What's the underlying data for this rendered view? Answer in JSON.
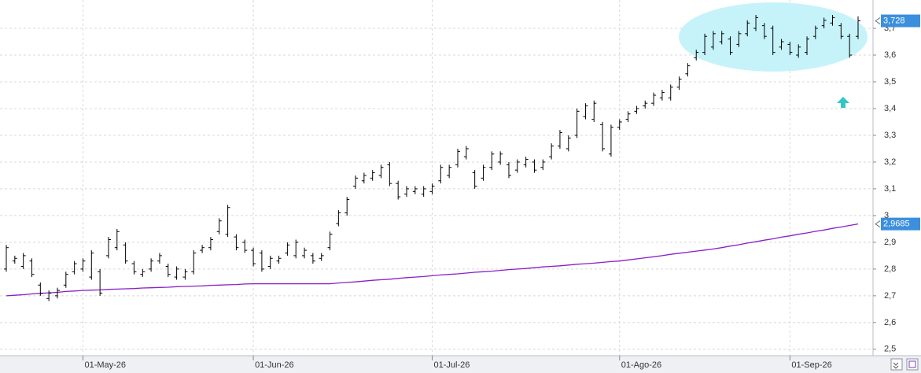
{
  "chart_data": {
    "type": "ohlc",
    "categories": [
      null,
      null,
      null,
      null,
      null,
      null,
      null,
      null,
      null,
      "01-May-26",
      null,
      null,
      null,
      null,
      null,
      null,
      null,
      null,
      null,
      null,
      null,
      null,
      null,
      null,
      null,
      null,
      null,
      null,
      null,
      "01-Jun-26",
      null,
      null,
      null,
      null,
      null,
      null,
      null,
      null,
      null,
      null,
      null,
      null,
      null,
      null,
      null,
      null,
      null,
      null,
      null,
      null,
      "01-Jul-26",
      null,
      null,
      null,
      null,
      null,
      null,
      null,
      null,
      null,
      null,
      null,
      null,
      null,
      null,
      null,
      null,
      null,
      null,
      null,
      null,
      null,
      "01-Ago-26",
      null,
      null,
      null,
      null,
      null,
      null,
      null,
      null,
      null,
      null,
      null,
      null,
      null,
      null,
      null,
      null,
      null,
      null,
      null,
      "01-Sep-26",
      null,
      null,
      null,
      null,
      null,
      null,
      null,
      null
    ],
    "ohlc": {
      "color": "#000000",
      "last_label": "3,728",
      "open": [
        2.8,
        2.83,
        2.81,
        2.83,
        2.74,
        2.69,
        2.7,
        2.74,
        2.79,
        2.8,
        2.77,
        2.79,
        2.85,
        2.88,
        2.89,
        2.82,
        2.78,
        2.8,
        2.83,
        2.81,
        2.77,
        2.77,
        2.79,
        2.87,
        2.88,
        2.94,
        2.93,
        2.92,
        2.9,
        2.87,
        2.86,
        2.81,
        2.83,
        2.86,
        2.85,
        2.85,
        2.85,
        2.84,
        2.88,
        2.97,
        3.01,
        3.11,
        3.13,
        3.14,
        3.15,
        3.19,
        3.12,
        3.08,
        3.09,
        3.08,
        3.09,
        3.13,
        3.15,
        3.19,
        3.22,
        3.16,
        3.14,
        3.18,
        3.2,
        3.19,
        3.17,
        3.19,
        3.2,
        3.18,
        3.22,
        3.26,
        3.25,
        3.3,
        3.37,
        3.36,
        3.34,
        3.23,
        3.33,
        3.36,
        3.39,
        3.41,
        3.42,
        3.44,
        3.44,
        3.48,
        3.53,
        3.59,
        3.61,
        3.63,
        3.65,
        3.66,
        3.64,
        3.68,
        3.7,
        3.71,
        3.7,
        3.63,
        3.64,
        3.6,
        3.61,
        3.67,
        3.71,
        3.72,
        3.71,
        3.67,
        3.67
      ],
      "high": [
        2.89,
        2.85,
        2.86,
        2.84,
        2.75,
        2.72,
        2.73,
        2.79,
        2.83,
        2.84,
        2.87,
        2.8,
        2.92,
        2.95,
        2.9,
        2.83,
        2.8,
        2.84,
        2.86,
        2.82,
        2.81,
        2.8,
        2.87,
        2.89,
        2.92,
        2.99,
        3.04,
        2.93,
        2.91,
        2.88,
        2.87,
        2.85,
        2.85,
        2.9,
        2.91,
        2.88,
        2.86,
        2.86,
        2.94,
        3.02,
        3.07,
        3.15,
        3.16,
        3.17,
        3.19,
        3.2,
        3.13,
        3.11,
        3.11,
        3.11,
        3.12,
        3.19,
        3.19,
        3.25,
        3.26,
        3.17,
        3.19,
        3.24,
        3.24,
        3.2,
        3.21,
        3.22,
        3.21,
        3.21,
        3.27,
        3.32,
        3.3,
        3.4,
        3.42,
        3.43,
        3.35,
        3.34,
        3.36,
        3.39,
        3.41,
        3.43,
        3.46,
        3.47,
        3.49,
        3.52,
        3.57,
        3.62,
        3.68,
        3.69,
        3.69,
        3.67,
        3.69,
        3.73,
        3.75,
        3.72,
        3.71,
        3.66,
        3.65,
        3.64,
        3.67,
        3.71,
        3.74,
        3.75,
        3.72,
        3.68,
        3.745
      ],
      "low": [
        2.79,
        2.82,
        2.8,
        2.77,
        2.7,
        2.68,
        2.69,
        2.73,
        2.78,
        2.79,
        2.76,
        2.7,
        2.84,
        2.87,
        2.82,
        2.78,
        2.77,
        2.79,
        2.82,
        2.77,
        2.76,
        2.76,
        2.78,
        2.86,
        2.87,
        2.93,
        2.92,
        2.87,
        2.86,
        2.81,
        2.79,
        2.8,
        2.82,
        2.85,
        2.84,
        2.84,
        2.82,
        2.83,
        2.87,
        2.96,
        3.0,
        3.1,
        3.12,
        3.13,
        3.14,
        3.11,
        3.06,
        3.07,
        3.08,
        3.07,
        3.08,
        3.12,
        3.14,
        3.18,
        3.21,
        3.1,
        3.13,
        3.17,
        3.19,
        3.14,
        3.16,
        3.18,
        3.16,
        3.17,
        3.21,
        3.25,
        3.24,
        3.29,
        3.36,
        3.35,
        3.24,
        3.22,
        3.32,
        3.35,
        3.38,
        3.4,
        3.41,
        3.43,
        3.43,
        3.47,
        3.52,
        3.58,
        3.6,
        3.62,
        3.64,
        3.6,
        3.63,
        3.67,
        3.69,
        3.66,
        3.6,
        3.62,
        3.6,
        3.59,
        3.6,
        3.66,
        3.7,
        3.71,
        3.66,
        3.59,
        3.66
      ],
      "close": [
        2.88,
        2.84,
        2.85,
        2.78,
        2.71,
        2.71,
        2.72,
        2.78,
        2.82,
        2.83,
        2.86,
        2.71,
        2.91,
        2.94,
        2.83,
        2.79,
        2.79,
        2.83,
        2.85,
        2.78,
        2.8,
        2.79,
        2.86,
        2.88,
        2.91,
        2.98,
        3.03,
        2.88,
        2.87,
        2.82,
        2.8,
        2.84,
        2.84,
        2.89,
        2.9,
        2.87,
        2.83,
        2.85,
        2.93,
        3.01,
        3.06,
        3.14,
        3.15,
        3.16,
        3.18,
        3.12,
        3.07,
        3.1,
        3.1,
        3.1,
        3.11,
        3.18,
        3.18,
        3.24,
        3.25,
        3.11,
        3.18,
        3.23,
        3.23,
        3.15,
        3.2,
        3.21,
        3.17,
        3.2,
        3.26,
        3.31,
        3.29,
        3.39,
        3.41,
        3.42,
        3.25,
        3.33,
        3.35,
        3.38,
        3.4,
        3.42,
        3.45,
        3.46,
        3.48,
        3.51,
        3.56,
        3.61,
        3.67,
        3.68,
        3.68,
        3.61,
        3.68,
        3.72,
        3.74,
        3.67,
        3.61,
        3.65,
        3.61,
        3.63,
        3.66,
        3.7,
        3.73,
        3.74,
        3.67,
        3.6,
        3.728
      ]
    },
    "ma": {
      "color": "#8a1fc8",
      "last_label": "2,9685",
      "values": [
        2.7,
        2.702,
        2.704,
        2.707,
        2.709,
        2.711,
        2.713,
        2.716,
        2.718,
        2.72,
        2.721,
        2.722,
        2.724,
        2.725,
        2.726,
        2.727,
        2.729,
        2.73,
        2.731,
        2.732,
        2.734,
        2.735,
        2.736,
        2.737,
        2.739,
        2.74,
        2.741,
        2.742,
        2.744,
        2.745,
        2.745,
        2.745,
        2.745,
        2.745,
        2.745,
        2.745,
        2.745,
        2.745,
        2.745,
        2.748,
        2.75,
        2.752,
        2.755,
        2.758,
        2.76,
        2.762,
        2.765,
        2.768,
        2.77,
        2.772,
        2.775,
        2.778,
        2.78,
        2.782,
        2.785,
        2.788,
        2.79,
        2.792,
        2.795,
        2.798,
        2.8,
        2.802,
        2.805,
        2.808,
        2.81,
        2.812,
        2.815,
        2.818,
        2.82,
        2.822,
        2.825,
        2.828,
        2.83,
        2.834,
        2.838,
        2.842,
        2.846,
        2.85,
        2.855,
        2.859,
        2.863,
        2.867,
        2.871,
        2.875,
        2.88,
        2.886,
        2.891,
        2.897,
        2.902,
        2.908,
        2.913,
        2.919,
        2.924,
        2.93,
        2.935,
        2.941,
        2.946,
        2.952,
        2.957,
        2.963,
        2.9685
      ]
    },
    "ylim": [
      2.476,
      3.806
    ],
    "yticks": [
      {
        "value": 2.5,
        "label": "2,5"
      },
      {
        "value": 2.6,
        "label": "2,6"
      },
      {
        "value": 2.7,
        "label": "2,7"
      },
      {
        "value": 2.8,
        "label": "2,8"
      },
      {
        "value": 2.9,
        "label": "2,9"
      },
      3,
      {
        "value": 3.1,
        "label": "3,1"
      },
      {
        "value": 3.2,
        "label": "3,2"
      },
      {
        "value": 3.3,
        "label": "3,3"
      },
      {
        "value": 3.4,
        "label": "3,4"
      },
      {
        "value": 3.5,
        "label": "3,5"
      },
      {
        "value": 3.6,
        "label": "3,6"
      },
      {
        "value": 3.7,
        "label": "3,7"
      }
    ],
    "grid": true
  }
}
